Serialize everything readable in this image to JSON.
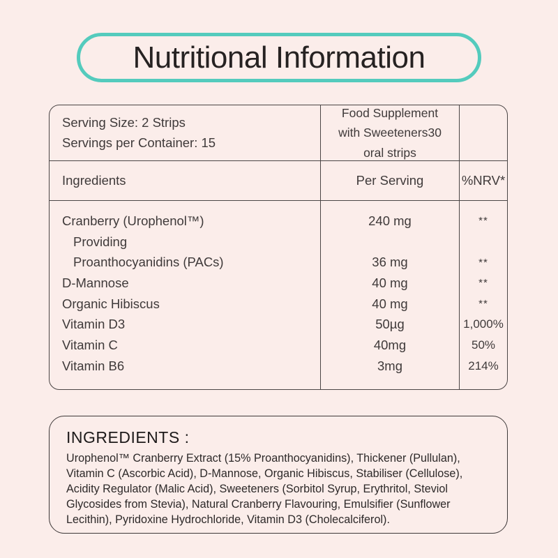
{
  "page": {
    "background_color": "#fbedea",
    "accent_color": "#54cbbd",
    "grid_line_color": "#4a4545",
    "text_color": "#3f3a3a"
  },
  "title": "Nutritional Information",
  "table": {
    "serving_size": "Serving Size: 2 Strips",
    "servings_per_container": "Servings per Container: 15",
    "product_header": "Food Supplement with Sweeteners30 oral strips",
    "columns": {
      "ingredients": "Ingredients",
      "per_serving": "Per Serving",
      "nrv": "%NRV*"
    },
    "rows": [
      {
        "name": "Cranberry (Urophenol™)",
        "amount": "240 mg",
        "nrv": "**"
      },
      {
        "name": "Providing",
        "amount": "",
        "nrv": ""
      },
      {
        "name": "Proanthocyanidins (PACs)",
        "amount": "36 mg",
        "nrv": "**"
      },
      {
        "name": "D-Mannose",
        "amount": "40 mg",
        "nrv": "**"
      },
      {
        "name": "Organic Hibiscus",
        "amount": "40 mg",
        "nrv": "**"
      },
      {
        "name": "Vitamin D3",
        "amount": "50µg",
        "nrv": "1,000%"
      },
      {
        "name": "Vitamin C",
        "amount": "40mg",
        "nrv": "50%"
      },
      {
        "name": "Vitamin B6",
        "amount": "3mg",
        "nrv": "214%"
      }
    ]
  },
  "ingredients_box": {
    "heading": "INGREDIENTS :",
    "text": "Urophenol™ Cranberry Extract (15% Proanthocyanidins), Thickener (Pullulan), Vitamin C (Ascorbic Acid), D-Mannose, Organic Hibiscus, Stabiliser (Cellulose), Acidity Regulator (Malic Acid), Sweeteners (Sorbitol Syrup, Erythritol, Steviol Glycosides from Stevia), Natural Cranberry Flavouring, Emulsifier (Sunflower Lecithin), Pyridoxine Hydrochloride, Vitamin D3 (Cholecalciferol)."
  }
}
